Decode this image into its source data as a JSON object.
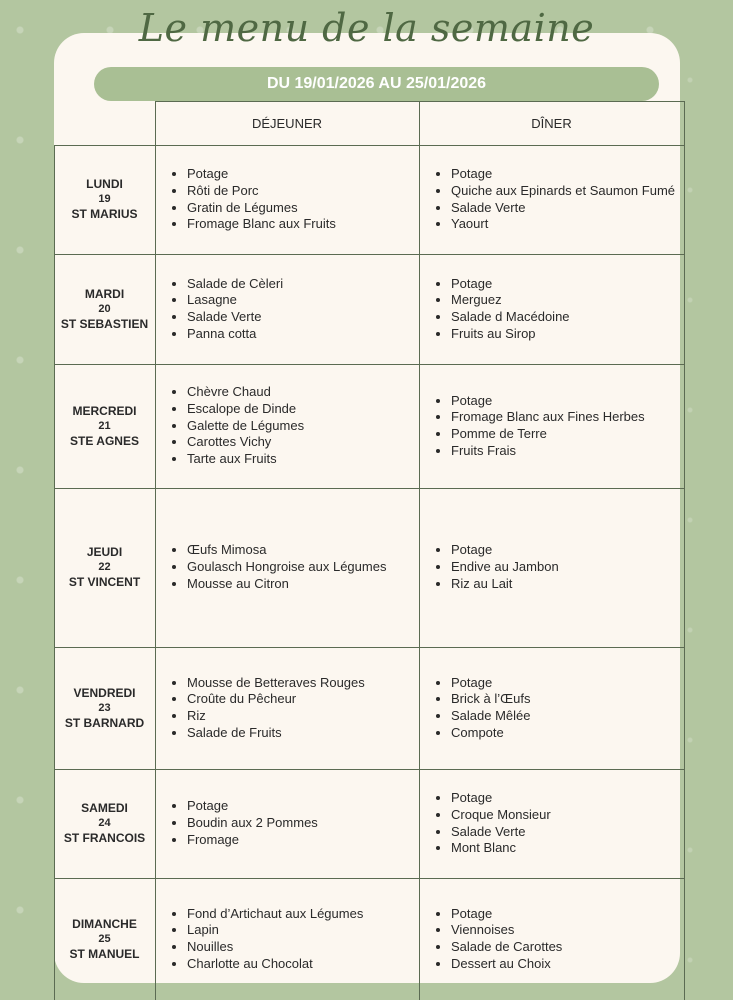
{
  "title": "Le menu de la semaine",
  "date_range": "DU 19/01/2026 AU 25/01/2026",
  "colors": {
    "background": "#b3c6a0",
    "card": "#fcf7f0",
    "pill": "#a9bf94",
    "title": "#4f6843"
  },
  "headers": {
    "lunch": "DÉJEUNER",
    "dinner": "DÎNER"
  },
  "days": [
    {
      "name": "LUNDI",
      "date": "19",
      "saint": "ST MARIUS",
      "lunch": [
        "Potage",
        "Rôti de Porc",
        "Gratin de Légumes",
        "Fromage Blanc aux Fruits"
      ],
      "dinner": [
        "Potage",
        "Quiche aux Epinards et Saumon Fumé",
        "Salade Verte",
        "Yaourt"
      ]
    },
    {
      "name": "MARDI",
      "date": "20",
      "saint": "ST SEBASTIEN",
      "lunch": [
        "Salade de Cèleri",
        "Lasagne",
        "Salade Verte",
        "Panna cotta"
      ],
      "dinner": [
        "Potage",
        "Merguez",
        "Salade d Macédoine",
        "Fruits au Sirop"
      ]
    },
    {
      "name": "MERCREDI",
      "date": "21",
      "saint": "STE AGNES",
      "lunch": [
        "Chèvre Chaud",
        "Escalope de Dinde",
        "Galette de Légumes",
        "Carottes Vichy",
        "Tarte aux Fruits"
      ],
      "dinner": [
        "Potage",
        "Fromage Blanc aux Fines Herbes",
        "Pomme de Terre",
        "Fruits Frais"
      ]
    },
    {
      "name": "JEUDI",
      "date": "22",
      "saint": "ST VINCENT",
      "lunch": [
        "Œufs Mimosa",
        "Goulasch Hongroise aux Légumes",
        "Mousse au Citron"
      ],
      "dinner": [
        "Potage",
        "Endive au Jambon",
        "Riz au Lait"
      ]
    },
    {
      "name": "VENDREDI",
      "date": "23",
      "saint": "ST BARNARD",
      "lunch": [
        "Mousse de Betteraves Rouges",
        "Croûte du Pêcheur",
        "Riz",
        "Salade de Fruits"
      ],
      "dinner": [
        "Potage",
        "Brick à l’Œufs",
        "Salade Mêlée",
        "Compote"
      ]
    },
    {
      "name": "SAMEDI",
      "date": "24",
      "saint": "ST FRANCOIS",
      "lunch": [
        "Potage",
        "Boudin aux 2 Pommes",
        "Fromage"
      ],
      "dinner": [
        "Potage",
        "Croque Monsieur",
        "Salade Verte",
        "Mont Blanc"
      ]
    },
    {
      "name": "DIMANCHE",
      "date": "25",
      "saint": "ST MANUEL",
      "lunch": [
        "Fond d’Artichaut aux Légumes",
        "Lapin",
        "Nouilles",
        "Charlotte au Chocolat"
      ],
      "dinner": [
        "Potage",
        "Viennoises",
        "Salade de Carottes",
        "Dessert au Choix"
      ]
    }
  ]
}
